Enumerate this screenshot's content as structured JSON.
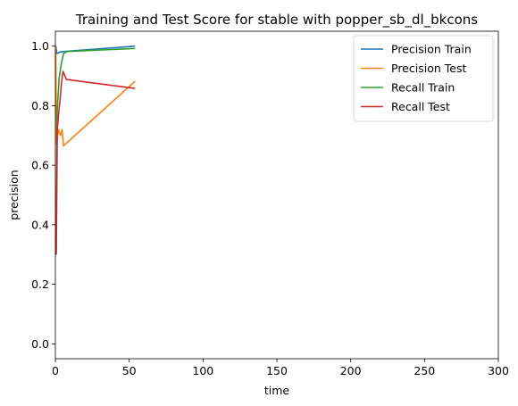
{
  "chart_data": {
    "type": "line",
    "title": "Training and Test Score for stable with popper_sb_dl_bkcons",
    "xlabel": "time",
    "ylabel": "precision",
    "xlim": [
      0,
      300
    ],
    "ylim": [
      -0.05,
      1.05
    ],
    "xticks": [
      0,
      50,
      100,
      150,
      200,
      250,
      300
    ],
    "yticks": [
      0.0,
      0.2,
      0.4,
      0.6,
      0.8,
      1.0
    ],
    "xtick_labels": [
      "0",
      "50",
      "100",
      "150",
      "200",
      "250",
      "300"
    ],
    "ytick_labels": [
      "0.0",
      "0.2",
      "0.4",
      "0.6",
      "0.8",
      "1.0"
    ],
    "grid": false,
    "legend_position": "top-right",
    "series": [
      {
        "name": "Precision Train",
        "color": "#1f77b4",
        "points": [
          [
            0.3,
            1.0
          ],
          [
            1.0,
            0.975
          ],
          [
            3.0,
            0.98
          ],
          [
            6.0,
            0.982
          ],
          [
            54.0,
            1.0
          ]
        ]
      },
      {
        "name": "Precision Test",
        "color": "#ff7f0e",
        "points": [
          [
            0.2,
            1.0
          ],
          [
            0.8,
            0.67
          ],
          [
            2.0,
            0.72
          ],
          [
            3.5,
            0.7
          ],
          [
            4.5,
            0.72
          ],
          [
            5.5,
            0.665
          ],
          [
            54.0,
            0.882
          ]
        ]
      },
      {
        "name": "Recall Train",
        "color": "#2ca02c",
        "points": [
          [
            0.5,
            0.3
          ],
          [
            1.2,
            0.78
          ],
          [
            2.5,
            0.89
          ],
          [
            4.0,
            0.94
          ],
          [
            5.5,
            0.975
          ],
          [
            8.0,
            0.982
          ],
          [
            54.0,
            0.992
          ]
        ]
      },
      {
        "name": "Recall Test",
        "color": "#d62728",
        "points": [
          [
            0.6,
            0.3
          ],
          [
            1.3,
            0.72
          ],
          [
            2.3,
            0.78
          ],
          [
            3.2,
            0.82
          ],
          [
            4.2,
            0.88
          ],
          [
            5.2,
            0.915
          ],
          [
            7.5,
            0.888
          ],
          [
            54.0,
            0.858
          ]
        ]
      }
    ]
  }
}
